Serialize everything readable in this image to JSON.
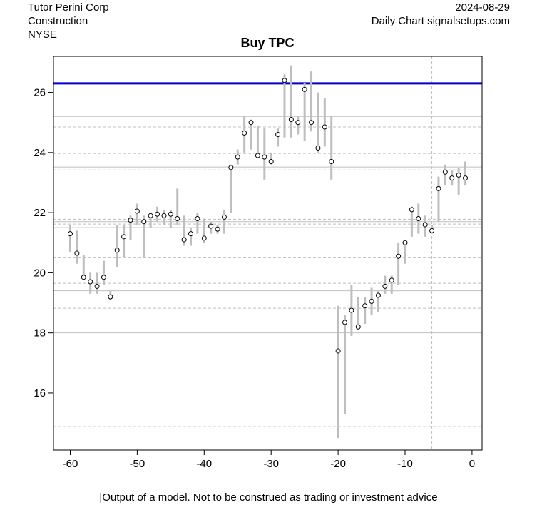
{
  "header": {
    "company": "Tutor Perini Corp",
    "sector": "Construction",
    "exchange": "NYSE",
    "date": "2024-08-29",
    "source": "Daily Chart signalsetups.com"
  },
  "footer": {
    "disclaimer": "|Output of a model. Not to be construed as trading or investment advice"
  },
  "colors": {
    "bar": "#bebebe",
    "close_marker": "#ffffff",
    "resistance": "#0000cd",
    "grid": "#bfbfbf",
    "axis": "#000000"
  },
  "chart_data": {
    "type": "candlestick-hl",
    "title": "Buy TPC",
    "xlabel": "",
    "ylabel": "",
    "xlim": [
      -62.5,
      1.5
    ],
    "ylim": [
      14.1,
      27.2
    ],
    "x_ticks": [
      -60,
      -50,
      -40,
      -30,
      -20,
      -10,
      0
    ],
    "y_ticks": [
      16,
      18,
      20,
      22,
      24,
      26
    ],
    "resistance_line": 26.3,
    "solid_levels": [
      25.2,
      23.52,
      21.7,
      21.5,
      19.4,
      18.0
    ],
    "dashed_levels": [
      24.85,
      23.97,
      23.42,
      21.78,
      21.62,
      20.5,
      19.65,
      18.82,
      14.88
    ],
    "vertical_dashed_x": -6,
    "x": [
      -60,
      -59,
      -58,
      -57,
      -56,
      -55,
      -54,
      -53,
      -52,
      -51,
      -50,
      -49,
      -48,
      -47,
      -46,
      -45,
      -44,
      -43,
      -42,
      -41,
      -40,
      -39,
      -38,
      -37,
      -36,
      -35,
      -34,
      -33,
      -32,
      -31,
      -30,
      -29,
      -28,
      -27,
      -26,
      -25,
      -24,
      -23,
      -22,
      -21,
      -20,
      -19,
      -18,
      -17,
      -16,
      -15,
      -14,
      -13,
      -12,
      -11,
      -10,
      -9,
      -8,
      -7,
      -6,
      -5,
      -4,
      -3,
      -2,
      -1
    ],
    "high": [
      21.6,
      21.4,
      20.6,
      20.0,
      20.0,
      20.4,
      19.4,
      21.6,
      21.6,
      21.9,
      22.3,
      21.9,
      22.0,
      22.2,
      22.1,
      22.1,
      22.8,
      21.9,
      21.5,
      22.0,
      21.8,
      21.7,
      21.6,
      22.1,
      23.6,
      24.1,
      25.2,
      25.1,
      24.9,
      24.8,
      24.0,
      24.8,
      26.6,
      26.9,
      25.2,
      26.3,
      26.7,
      26.0,
      25.8,
      25.2,
      18.9,
      18.6,
      19.6,
      19.2,
      19.2,
      19.5,
      19.4,
      19.9,
      19.9,
      21.0,
      21.0,
      22.2,
      22.3,
      21.9,
      21.6,
      23.2,
      23.6,
      23.4,
      23.5,
      23.7
    ],
    "low": [
      20.7,
      20.3,
      19.8,
      19.3,
      19.3,
      19.6,
      19.1,
      20.2,
      20.5,
      21.1,
      21.6,
      20.5,
      21.5,
      21.7,
      21.6,
      21.5,
      21.6,
      20.9,
      20.9,
      21.3,
      21.0,
      21.3,
      21.3,
      21.3,
      22.0,
      23.6,
      24.0,
      24.1,
      23.8,
      23.1,
      23.6,
      24.2,
      24.5,
      24.5,
      24.6,
      24.4,
      24.7,
      24.0,
      24.2,
      23.1,
      14.5,
      15.3,
      17.9,
      18.1,
      18.3,
      18.6,
      18.7,
      19.3,
      19.3,
      19.6,
      20.3,
      21.2,
      21.3,
      21.2,
      21.3,
      21.7,
      22.9,
      22.9,
      22.6,
      22.9
    ],
    "close": [
      21.3,
      20.65,
      19.85,
      19.7,
      19.55,
      19.85,
      19.2,
      20.75,
      21.2,
      21.75,
      22.05,
      21.7,
      21.9,
      21.95,
      21.9,
      21.95,
      21.8,
      21.1,
      21.3,
      21.8,
      21.15,
      21.55,
      21.45,
      21.85,
      23.5,
      23.85,
      24.65,
      25.0,
      23.9,
      23.85,
      23.7,
      24.6,
      26.4,
      25.1,
      25.0,
      26.1,
      25.0,
      24.15,
      24.85,
      23.7,
      17.4,
      18.35,
      18.75,
      18.2,
      18.9,
      19.05,
      19.25,
      19.55,
      19.75,
      20.55,
      21.0,
      22.1,
      21.8,
      21.6,
      21.4,
      22.8,
      23.35,
      23.15,
      23.25,
      23.15
    ]
  }
}
